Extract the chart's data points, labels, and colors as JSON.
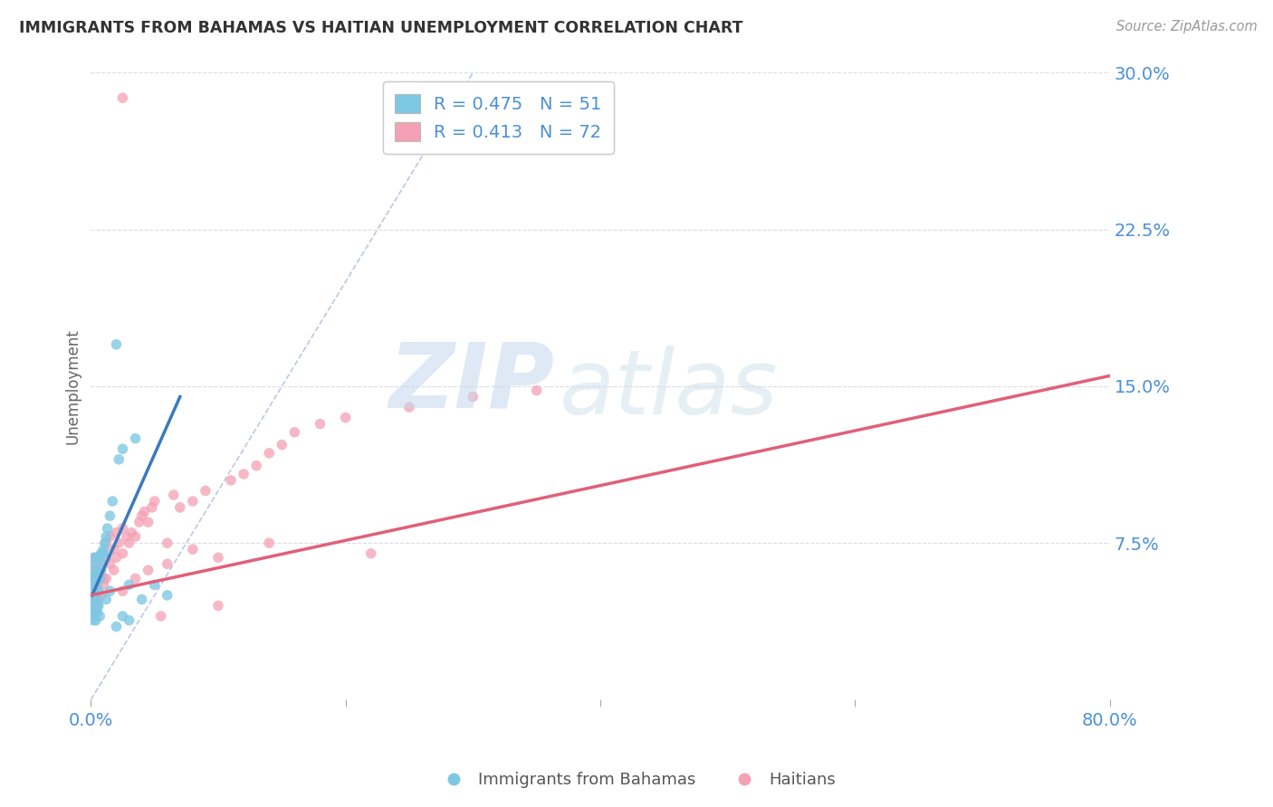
{
  "title": "IMMIGRANTS FROM BAHAMAS VS HAITIAN UNEMPLOYMENT CORRELATION CHART",
  "source": "Source: ZipAtlas.com",
  "ylabel": "Unemployment",
  "xlim": [
    0.0,
    0.8
  ],
  "ylim": [
    0.0,
    0.3
  ],
  "ytick_vals": [
    0.075,
    0.15,
    0.225,
    0.3
  ],
  "ytick_labels": [
    "7.5%",
    "15.0%",
    "22.5%",
    "30.0%"
  ],
  "xtick_vals": [
    0.0,
    0.2,
    0.4,
    0.6,
    0.8
  ],
  "xtick_labels": [
    "0.0%",
    "",
    "",
    "",
    "80.0%"
  ],
  "legend_label1": "Immigrants from Bahamas",
  "legend_label2": "Haitians",
  "color_blue": "#7ec8e3",
  "color_pink": "#f4a0b5",
  "color_blue_line": "#3a7abf",
  "color_pink_line": "#e0607a",
  "color_title": "#333333",
  "color_axis_labels": "#4a90d9",
  "color_source": "#999999",
  "watermark_zip": "ZIP",
  "watermark_atlas": "atlas",
  "background_color": "#ffffff",
  "blue_line_x": [
    0.001,
    0.07
  ],
  "blue_line_y": [
    0.05,
    0.145
  ],
  "pink_line_x": [
    0.0,
    0.8
  ],
  "pink_line_y": [
    0.05,
    0.155
  ],
  "diag_line_x": [
    0.0,
    0.3
  ],
  "diag_line_y": [
    0.0,
    0.3
  ],
  "blue_scatter_x": [
    0.001,
    0.001,
    0.001,
    0.002,
    0.002,
    0.002,
    0.002,
    0.003,
    0.003,
    0.003,
    0.003,
    0.004,
    0.004,
    0.004,
    0.005,
    0.005,
    0.005,
    0.006,
    0.006,
    0.007,
    0.007,
    0.008,
    0.008,
    0.009,
    0.01,
    0.011,
    0.012,
    0.013,
    0.015,
    0.017,
    0.02,
    0.022,
    0.025,
    0.03,
    0.035,
    0.04,
    0.05,
    0.06,
    0.002,
    0.003,
    0.003,
    0.004,
    0.005,
    0.006,
    0.007,
    0.01,
    0.012,
    0.015,
    0.02,
    0.025,
    0.03
  ],
  "blue_scatter_y": [
    0.045,
    0.05,
    0.055,
    0.04,
    0.048,
    0.055,
    0.06,
    0.042,
    0.05,
    0.058,
    0.065,
    0.048,
    0.055,
    0.062,
    0.045,
    0.058,
    0.068,
    0.052,
    0.06,
    0.058,
    0.068,
    0.062,
    0.07,
    0.065,
    0.07,
    0.075,
    0.078,
    0.082,
    0.088,
    0.095,
    0.17,
    0.115,
    0.12,
    0.055,
    0.125,
    0.048,
    0.055,
    0.05,
    0.038,
    0.042,
    0.068,
    0.038,
    0.042,
    0.045,
    0.04,
    0.072,
    0.048,
    0.052,
    0.035,
    0.04,
    0.038
  ],
  "pink_scatter_x": [
    0.001,
    0.001,
    0.002,
    0.002,
    0.002,
    0.003,
    0.003,
    0.003,
    0.004,
    0.004,
    0.005,
    0.005,
    0.005,
    0.006,
    0.007,
    0.008,
    0.009,
    0.01,
    0.01,
    0.012,
    0.012,
    0.015,
    0.015,
    0.018,
    0.02,
    0.02,
    0.022,
    0.025,
    0.025,
    0.028,
    0.03,
    0.032,
    0.035,
    0.038,
    0.04,
    0.042,
    0.045,
    0.048,
    0.05,
    0.055,
    0.06,
    0.065,
    0.07,
    0.08,
    0.09,
    0.1,
    0.11,
    0.12,
    0.13,
    0.14,
    0.15,
    0.16,
    0.18,
    0.2,
    0.22,
    0.25,
    0.3,
    0.35,
    0.025,
    0.004,
    0.006,
    0.008,
    0.01,
    0.012,
    0.018,
    0.025,
    0.035,
    0.045,
    0.06,
    0.08,
    0.1,
    0.14
  ],
  "pink_scatter_y": [
    0.055,
    0.062,
    0.048,
    0.058,
    0.068,
    0.045,
    0.052,
    0.06,
    0.05,
    0.065,
    0.045,
    0.055,
    0.068,
    0.058,
    0.06,
    0.062,
    0.065,
    0.058,
    0.07,
    0.068,
    0.075,
    0.065,
    0.078,
    0.072,
    0.068,
    0.08,
    0.075,
    0.07,
    0.082,
    0.078,
    0.075,
    0.08,
    0.078,
    0.085,
    0.088,
    0.09,
    0.085,
    0.092,
    0.095,
    0.04,
    0.075,
    0.098,
    0.092,
    0.095,
    0.1,
    0.045,
    0.105,
    0.108,
    0.112,
    0.118,
    0.122,
    0.128,
    0.132,
    0.135,
    0.07,
    0.14,
    0.145,
    0.148,
    0.288,
    0.042,
    0.048,
    0.05,
    0.055,
    0.058,
    0.062,
    0.052,
    0.058,
    0.062,
    0.065,
    0.072,
    0.068,
    0.075
  ]
}
